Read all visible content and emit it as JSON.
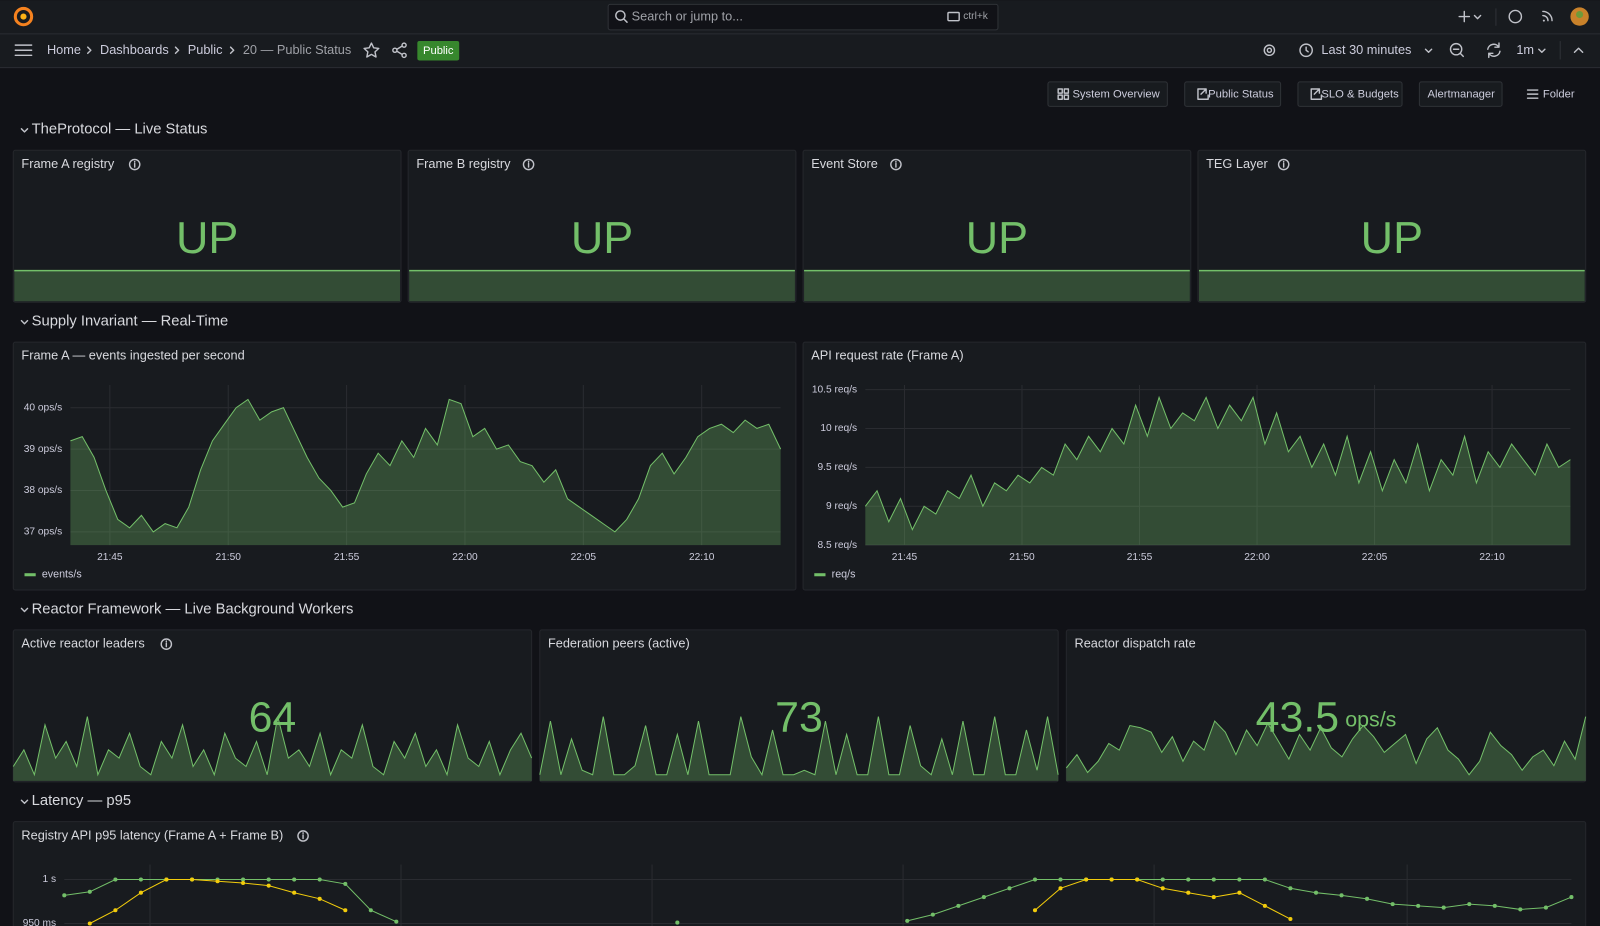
{
  "topbar": {
    "search": "Search or jump to...",
    "shortcut": "ctrl+k"
  },
  "breadcrumbs": [
    "Home",
    "Dashboards",
    "Public",
    "20 — Public Status"
  ],
  "tag": "Public",
  "time_range": "Last 30 minutes",
  "refresh": "1m",
  "links": [
    "System Overview",
    "Public Status",
    "SLO & Budgets",
    "Alertmanager",
    "Folder"
  ],
  "rows": [
    {
      "title": "TheProtocol — Live Status",
      "panels": [
        {
          "title": "Frame A registry",
          "value": "UP"
        },
        {
          "title": "Frame B registry",
          "value": "UP"
        },
        {
          "title": "Event Store",
          "value": "UP"
        },
        {
          "title": "TEG Layer",
          "value": "UP"
        }
      ]
    },
    {
      "title": "Supply Invariant — Real-Time",
      "panels": [
        {
          "title": "Frame A — events ingested per second",
          "chart_data": {
            "type": "line",
            "xlim": [
              "21:43:20",
              "22:13:20"
            ],
            "xticks": [
              "21:45",
              "21:50",
              "21:55",
              "22:00",
              "22:05",
              "22:10"
            ],
            "ylim": [
              36.68,
              40.55
            ],
            "yticks": [
              {
                "value": 37,
                "label": "37 ops/s"
              },
              {
                "value": 38,
                "label": "38 ops/s"
              },
              {
                "value": 39,
                "label": "39 ops/s"
              },
              {
                "value": 40,
                "label": "40 ops/s"
              }
            ],
            "grid": true,
            "series": [
              {
                "name": "events/s",
                "color": "#73bf69",
                "values": [
                  39.2,
                  39.3,
                  38.8,
                  38.0,
                  37.3,
                  37.1,
                  37.4,
                  37.0,
                  37.2,
                  37.1,
                  37.6,
                  38.5,
                  39.2,
                  39.6,
                  40.0,
                  40.2,
                  39.7,
                  39.9,
                  40.0,
                  39.4,
                  38.8,
                  38.3,
                  38.0,
                  37.6,
                  37.7,
                  38.4,
                  38.9,
                  38.6,
                  39.2,
                  38.8,
                  39.5,
                  39.1,
                  40.2,
                  40.1,
                  39.3,
                  39.5,
                  39.0,
                  39.1,
                  38.7,
                  38.6,
                  38.2,
                  38.5,
                  37.8,
                  37.6,
                  37.4,
                  37.2,
                  37.0,
                  37.3,
                  37.8,
                  38.6,
                  38.9,
                  38.4,
                  38.8,
                  39.3,
                  39.5,
                  39.6,
                  39.4,
                  39.7,
                  39.5,
                  39.6,
                  39.0
                ]
              }
            ]
          }
        },
        {
          "title": "API request rate (Frame A)",
          "chart_data": {
            "type": "line",
            "xlim": [
              "21:43:20",
              "22:13:20"
            ],
            "xticks": [
              "21:45",
              "21:50",
              "21:55",
              "22:00",
              "22:05",
              "22:10"
            ],
            "ylim": [
              8.5,
              10.56
            ],
            "yticks": [
              {
                "value": 8.5,
                "label": "8.5 req/s"
              },
              {
                "value": 9,
                "label": "9 req/s"
              },
              {
                "value": 9.5,
                "label": "9.5 req/s"
              },
              {
                "value": 10,
                "label": "10 req/s"
              },
              {
                "value": 10.5,
                "label": "10.5 req/s"
              }
            ],
            "grid": true,
            "series": [
              {
                "name": "req/s",
                "color": "#73bf69",
                "values": [
                  9.0,
                  9.2,
                  8.8,
                  9.1,
                  8.7,
                  9.0,
                  8.9,
                  9.2,
                  9.1,
                  9.4,
                  9.0,
                  9.3,
                  9.2,
                  9.4,
                  9.3,
                  9.5,
                  9.4,
                  9.8,
                  9.6,
                  9.9,
                  9.7,
                  10.0,
                  9.8,
                  10.3,
                  9.9,
                  10.4,
                  10.0,
                  10.2,
                  10.1,
                  10.4,
                  10.0,
                  10.3,
                  10.1,
                  10.4,
                  9.8,
                  10.2,
                  9.7,
                  9.9,
                  9.5,
                  9.8,
                  9.4,
                  9.9,
                  9.3,
                  9.7,
                  9.2,
                  9.6,
                  9.3,
                  9.8,
                  9.2,
                  9.6,
                  9.4,
                  9.9,
                  9.3,
                  9.7,
                  9.5,
                  9.8,
                  9.6,
                  9.4,
                  9.8,
                  9.5,
                  9.6
                ]
              }
            ]
          }
        }
      ]
    },
    {
      "title": "Reactor Framework — Live Background Workers",
      "panels": [
        {
          "title": "Active reactor leaders",
          "value": 64,
          "color": "#73bf69",
          "sparkline": [
            58,
            60,
            57,
            63,
            59,
            61,
            58,
            64,
            57,
            60,
            59,
            62,
            58,
            57,
            61,
            59,
            63,
            58,
            60,
            57,
            62,
            59,
            58,
            61,
            57,
            64,
            59,
            60,
            58,
            62,
            57,
            60,
            59,
            63,
            58,
            57,
            61,
            59,
            62,
            58,
            60,
            57,
            63,
            59,
            58,
            61,
            57,
            60,
            62,
            59
          ]
        },
        {
          "title": "Federation peers (active)",
          "value": 73,
          "color": "#73bf69",
          "sparkline": [
            60,
            72,
            60,
            68,
            61,
            60,
            73,
            60,
            60,
            62,
            71,
            60,
            60,
            69,
            60,
            72,
            60,
            60,
            60,
            73,
            64,
            60,
            70,
            60,
            60,
            61,
            60,
            72,
            60,
            69,
            60,
            60,
            73,
            60,
            60,
            71,
            62,
            60,
            68,
            60,
            72,
            60,
            60,
            73,
            60,
            60,
            70,
            61,
            73,
            60
          ]
        },
        {
          "title": "Reactor dispatch rate",
          "value": 43.5,
          "unit": "ops/s",
          "color": "#73bf69",
          "sparkline": [
            41.2,
            41.8,
            41.0,
            41.5,
            42.3,
            42.0,
            43.1,
            43.0,
            42.8,
            41.9,
            42.6,
            41.5,
            42.4,
            42.0,
            43.3,
            42.8,
            41.8,
            42.9,
            42.2,
            43.2,
            42.4,
            41.6,
            42.7,
            42.0,
            43.0,
            42.1,
            41.7,
            42.5,
            43.1,
            42.6,
            41.9,
            42.3,
            42.7,
            41.4,
            42.5,
            43.0,
            42.0,
            41.6,
            40.9,
            41.5,
            42.8,
            42.2,
            41.8,
            41.1,
            41.7,
            42.0,
            41.3,
            42.4,
            41.6,
            43.5
          ]
        }
      ]
    },
    {
      "title": "Latency — p95",
      "panels": [
        {
          "title": "Registry API p95 latency (Frame A + Frame B)",
          "chart_data": {
            "type": "line",
            "ylim": [
              0.93,
              1.017
            ],
            "yticks": [
              {
                "value": 0.95,
                "label": "950 ms"
              },
              {
                "value": 1,
                "label": "1 s"
              }
            ],
            "grid": true,
            "points": true,
            "series": [
              {
                "color": "#73bf69",
                "values": [
                  0.982,
                  0.986,
                  1.0,
                  1.0,
                  1.0,
                  1.0,
                  1.0,
                  1.0,
                  1.0,
                  1.0,
                  1.0,
                  0.995,
                  0.965,
                  0.952,
                  null,
                  null,
                  null,
                  null,
                  null,
                  null,
                  null,
                  null,
                  null,
                  null,
                  0.951,
                  null,
                  null,
                  null,
                  null,
                  null,
                  null,
                  null,
                  null,
                  0.953,
                  0.96,
                  0.97,
                  0.98,
                  0.99,
                  1.0,
                  1.0,
                  1.0,
                  1.0,
                  1.0,
                  1.0,
                  1.0,
                  1.0,
                  1.0,
                  1.0,
                  0.99,
                  0.985,
                  0.982,
                  0.978,
                  0.972,
                  0.97,
                  0.968,
                  0.972,
                  0.97,
                  0.966,
                  0.968,
                  0.98
                ]
              },
              {
                "color": "#f2cc0c",
                "values": [
                  null,
                  0.95,
                  0.965,
                  0.985,
                  1.0,
                  1.0,
                  0.998,
                  0.996,
                  0.993,
                  0.985,
                  0.978,
                  0.965,
                  null,
                  null,
                  null,
                  null,
                  null,
                  null,
                  null,
                  null,
                  null,
                  null,
                  null,
                  null,
                  null,
                  null,
                  null,
                  null,
                  null,
                  null,
                  null,
                  null,
                  null,
                  null,
                  null,
                  null,
                  null,
                  null,
                  0.965,
                  0.99,
                  1.0,
                  1.0,
                  1.0,
                  0.99,
                  0.985,
                  0.98,
                  0.985,
                  0.97,
                  0.955,
                  null,
                  null,
                  null,
                  null,
                  null,
                  null,
                  null,
                  null,
                  null,
                  null,
                  null
                ]
              }
            ]
          }
        }
      ]
    }
  ]
}
